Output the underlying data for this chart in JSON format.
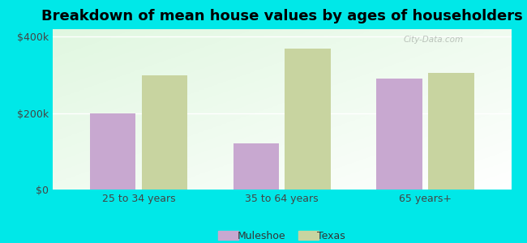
{
  "title": "Breakdown of mean house values by ages of householders",
  "categories": [
    "25 to 34 years",
    "35 to 64 years",
    "65 years+"
  ],
  "muleshoe_values": [
    200000,
    120000,
    290000
  ],
  "texas_values": [
    300000,
    370000,
    305000
  ],
  "muleshoe_color": "#c8a8d0",
  "texas_color": "#c8d4a0",
  "background_color": "#00e8e8",
  "ylim": [
    0,
    420000
  ],
  "yticks": [
    0,
    200000,
    400000
  ],
  "ytick_labels": [
    "$0",
    "$200k",
    "$400k"
  ],
  "bar_width": 0.32,
  "legend_labels": [
    "Muleshoe",
    "Texas"
  ],
  "title_fontsize": 13,
  "tick_fontsize": 9,
  "legend_fontsize": 9
}
